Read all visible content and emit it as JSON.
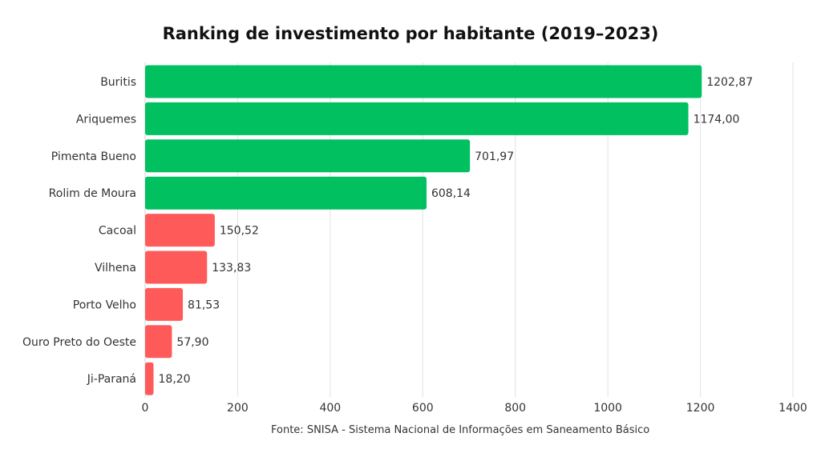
{
  "chart_data": {
    "type": "bar",
    "orientation": "horizontal",
    "title": "Ranking de investimento por habitante (2019–2023)",
    "source": "Fonte: SNISA - Sistema Nacional de Informações em Saneamento Básico",
    "categories": [
      "Buritis",
      "Ariquemes",
      "Pimenta Bueno",
      "Rolim de Moura",
      "Cacoal",
      "Vilhena",
      "Porto Velho",
      "Ouro Preto do Oeste",
      "Ji-Paraná"
    ],
    "values": [
      1202.87,
      1174.0,
      701.97,
      608.14,
      150.52,
      133.83,
      81.53,
      57.9,
      18.2
    ],
    "value_labels": [
      "1202,87",
      "1174,00",
      "701,97",
      "608,14",
      "150,52",
      "133,83",
      "81,53",
      "57,90",
      "18,20"
    ],
    "bar_colors": [
      "#00c060",
      "#00c060",
      "#00c060",
      "#00c060",
      "#ff5a5a",
      "#ff5a5a",
      "#ff5a5a",
      "#ff5a5a",
      "#ff5a5a"
    ],
    "xlim": [
      0,
      1400
    ],
    "xticks": [
      0,
      200,
      400,
      600,
      800,
      1000,
      1200,
      1400
    ],
    "xlabel": "",
    "ylabel": "",
    "grid": "vertical",
    "legend": "none"
  }
}
